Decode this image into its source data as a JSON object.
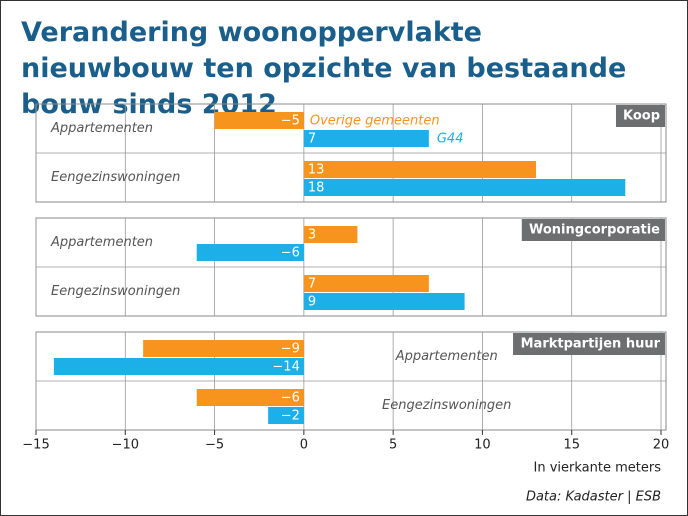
{
  "chart_data": {
    "type": "bar",
    "title": "Verandering woonoppervlakte nieuwbouw ten opzichte van bestaande bouw sinds 2012",
    "xlabel": "In vierkante meters",
    "source": "Data: Kadaster | ESB",
    "xlim": [
      -15,
      20
    ],
    "xticks": [
      {
        "value": -15,
        "label": "−15"
      },
      {
        "value": -10,
        "label": "−10"
      },
      {
        "value": -5,
        "label": "−5"
      },
      0,
      5,
      10,
      15,
      20
    ],
    "grid": true,
    "series": [
      {
        "name": "Overige gemeenten",
        "color": "#f7941d"
      },
      {
        "name": "G44",
        "color": "#1cafe8"
      }
    ],
    "panels": [
      {
        "title": "Koop",
        "categories": [
          "Appartementen",
          "Eengezinswoningen"
        ],
        "series": [
          {
            "values": [
              -5,
              13
            ],
            "value_labels": [
              "−5",
              "13"
            ]
          },
          {
            "values": [
              7,
              18
            ]
          }
        ]
      },
      {
        "title": "Woningcorporatie",
        "categories": [
          "Appartementen",
          "Eengezinswoningen"
        ],
        "series": [
          {
            "values": [
              3,
              7
            ]
          },
          {
            "values": [
              -6,
              9
            ],
            "value_labels": [
              "−6",
              "9"
            ]
          }
        ]
      },
      {
        "title": "Marktpartijen huur",
        "categories": [
          "Appartementen",
          "Eengezinswoningen"
        ],
        "series": [
          {
            "values": [
              -9,
              -6
            ],
            "value_labels": [
              "−9",
              "−6"
            ]
          },
          {
            "values": [
              -14,
              -2
            ],
            "value_labels": [
              "−14",
              "−2"
            ]
          }
        ]
      }
    ]
  }
}
